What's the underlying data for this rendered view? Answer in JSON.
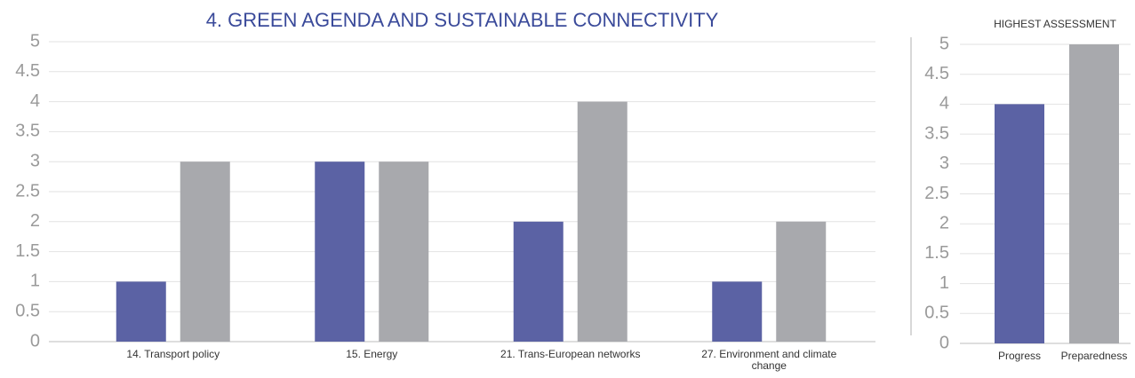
{
  "chart_data": [
    {
      "type": "bar",
      "title": "4. GREEN AGENDA AND SUSTAINABLE CONNECTIVITY",
      "categories": [
        "14. Transport policy",
        "15. Energy",
        "21. Trans-European networks",
        "27.  Environment and climate change"
      ],
      "series": [
        {
          "color": "#5b62a4",
          "values": [
            1,
            3,
            2,
            1
          ]
        },
        {
          "color": "#a8a9ad",
          "values": [
            3,
            3,
            4,
            2
          ]
        }
      ],
      "ylim": [
        0,
        5
      ],
      "yticks": [
        0,
        0.5,
        1,
        1.5,
        2,
        2.5,
        3,
        3.5,
        4,
        4.5,
        5
      ],
      "grid": true
    },
    {
      "type": "bar",
      "title": "HIGHEST ASSESSMENT",
      "categories": [
        "Progress",
        "Preparedness"
      ],
      "values": [
        4,
        5
      ],
      "colors": [
        "#5b62a4",
        "#a8a9ad"
      ],
      "ylim": [
        0,
        5
      ],
      "yticks": [
        0,
        0.5,
        1,
        1.5,
        2,
        2.5,
        3,
        3.5,
        4,
        4.5,
        5
      ],
      "grid": true
    }
  ]
}
